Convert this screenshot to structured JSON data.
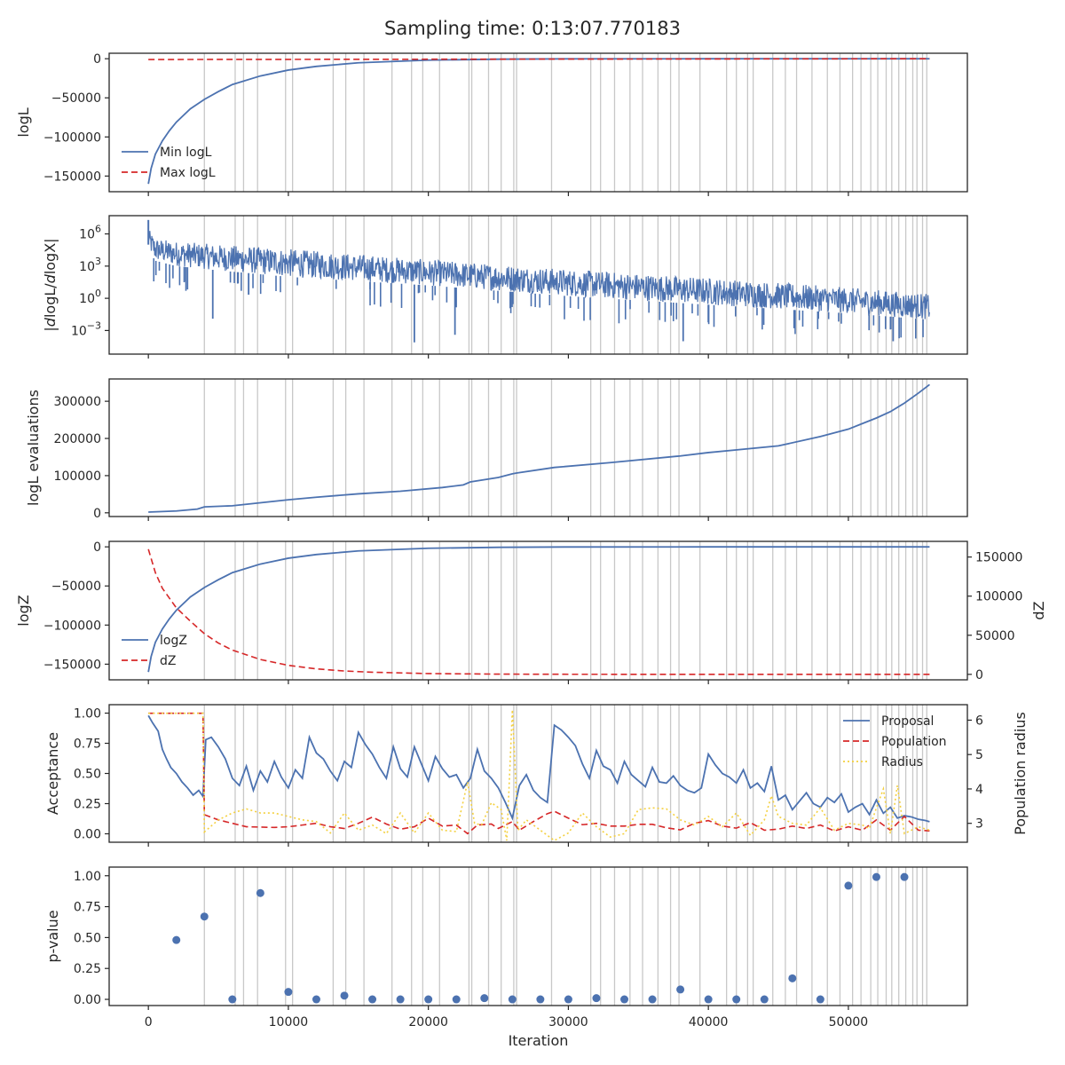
{
  "title": "Sampling time: 0:13:07.770183",
  "colors": {
    "blue": "#4c72b0",
    "red": "#d62728",
    "gold": "#f4d03f",
    "grid": "#c8c8c8",
    "axis": "#262626",
    "text": "#262626"
  },
  "chart_data": [
    {
      "type": "line",
      "id": "logL",
      "ylabel": "logL",
      "xlim": [
        -2800,
        58500
      ],
      "ylim": [
        -170000,
        7000
      ],
      "yticks": [
        0,
        -50000,
        -100000,
        -150000
      ],
      "ytick_labels": [
        "0",
        "−50000",
        "−100000",
        "−150000"
      ],
      "legend": "lower-left",
      "series": [
        {
          "name": "Min logL",
          "style": "solid",
          "color": "blue",
          "x": [
            0,
            200,
            500,
            1000,
            1500,
            2000,
            3000,
            4000,
            5000,
            6000,
            8000,
            10000,
            12000,
            15000,
            20000,
            25000,
            30000,
            40000,
            50000,
            55800
          ],
          "y": [
            -160000,
            -140000,
            -122000,
            -105000,
            -92000,
            -81000,
            -64000,
            -52000,
            -42000,
            -33000,
            -22000,
            -14500,
            -9800,
            -5200,
            -1800,
            -600,
            -150,
            -20,
            -3,
            0
          ]
        },
        {
          "name": "Max logL",
          "style": "dashed",
          "color": "red",
          "x": [
            0,
            55800
          ],
          "y": [
            -1000,
            0
          ]
        }
      ]
    },
    {
      "type": "line",
      "id": "dlogL",
      "ylabel": "|dlogL/dlogX|",
      "yscale": "log",
      "xlim": [
        -2800,
        58500
      ],
      "ylim": [
        -5.2,
        7.7
      ],
      "yticks": [
        6,
        3,
        0,
        -3
      ],
      "ytick_labels": [
        "10^6",
        "10^3",
        "10^0",
        "10^−3"
      ],
      "series": [
        {
          "name": "",
          "style": "noisy-band",
          "color": "blue",
          "x": [
            0,
            100,
            500,
            2000,
            5000,
            10000,
            20000,
            30000,
            40000,
            50000,
            55800
          ],
          "y_upper": [
            7.3,
            6.3,
            5.6,
            5.3,
            5.0,
            4.6,
            3.6,
            2.7,
            1.9,
            1.0,
            0.4
          ],
          "y_lower": [
            5.0,
            4.3,
            3.5,
            3.0,
            2.6,
            2.0,
            1.2,
            0.2,
            -0.6,
            -1.4,
            -2.0
          ],
          "y_min_spikes": [
            -1.9,
            -4.1,
            -3.4,
            -4.0,
            -4.0
          ]
        }
      ]
    },
    {
      "type": "line",
      "id": "evals",
      "ylabel": "logL evaluations",
      "xlim": [
        -2800,
        58500
      ],
      "ylim": [
        -10000,
        360000
      ],
      "yticks": [
        0,
        100000,
        200000,
        300000
      ],
      "ytick_labels": [
        "0",
        "100000",
        "200000",
        "300000"
      ],
      "series": [
        {
          "name": "",
          "style": "solid",
          "color": "blue",
          "x": [
            0,
            2000,
            3500,
            4000,
            6000,
            8000,
            10000,
            12000,
            15000,
            18000,
            21000,
            22500,
            23000,
            25000,
            26000,
            26300,
            29000,
            33000,
            38000,
            40000,
            45000,
            48000,
            50000,
            51000,
            52000,
            53000,
            54000,
            55000,
            55800
          ],
          "y": [
            2000,
            5000,
            10000,
            16000,
            19000,
            27000,
            35000,
            42000,
            51000,
            58000,
            68000,
            75000,
            83000,
            95000,
            105000,
            107000,
            122000,
            135000,
            153000,
            162000,
            180000,
            205000,
            225000,
            240000,
            255000,
            272000,
            295000,
            322000,
            345000
          ]
        }
      ]
    },
    {
      "type": "line",
      "id": "logZ",
      "ylabel": "logZ",
      "y2label": "dZ",
      "xlim": [
        -2800,
        58500
      ],
      "ylim": [
        -170000,
        7000
      ],
      "y2lim": [
        -7000,
        170000
      ],
      "yticks": [
        0,
        -50000,
        -100000,
        -150000
      ],
      "ytick_labels": [
        "0",
        "−50000",
        "−100000",
        "−150000"
      ],
      "y2ticks": [
        0,
        50000,
        100000,
        150000
      ],
      "y2tick_labels": [
        "0",
        "50000",
        "100000",
        "150000"
      ],
      "legend": "lower-left",
      "series": [
        {
          "name": "logZ",
          "style": "solid",
          "color": "blue",
          "axis": "left",
          "x": [
            0,
            200,
            500,
            1000,
            1500,
            2000,
            3000,
            4000,
            5000,
            6000,
            8000,
            10000,
            12000,
            15000,
            20000,
            25000,
            30000,
            40000,
            50000,
            55800
          ],
          "y": [
            -160000,
            -140000,
            -122000,
            -105000,
            -92000,
            -81000,
            -64000,
            -52000,
            -42000,
            -33000,
            -22000,
            -14500,
            -9800,
            -5200,
            -1800,
            -600,
            -150,
            -20,
            -3,
            0
          ]
        },
        {
          "name": "dZ",
          "style": "dashed",
          "color": "red",
          "axis": "right",
          "x": [
            0,
            500,
            1000,
            2000,
            3000,
            4000,
            5000,
            6000,
            8000,
            10000,
            12000,
            14000,
            16000,
            20000,
            25000,
            30000,
            40000,
            55800
          ],
          "y": [
            160000,
            130000,
            110000,
            85000,
            68000,
            52000,
            40000,
            31000,
            19000,
            11500,
            7000,
            4300,
            2700,
            1000,
            300,
            100,
            10,
            0
          ]
        }
      ]
    },
    {
      "type": "line",
      "id": "acceptance",
      "ylabel": "Acceptance",
      "y2label": "Population radius",
      "xlim": [
        -2800,
        58500
      ],
      "ylim": [
        -0.07,
        1.07
      ],
      "y2lim": [
        2.45,
        6.45
      ],
      "yticks": [
        0,
        0.25,
        0.5,
        0.75,
        1.0
      ],
      "ytick_labels": [
        "0.00",
        "0.25",
        "0.50",
        "0.75",
        "1.00"
      ],
      "y2ticks": [
        3,
        4,
        5,
        6
      ],
      "y2tick_labels": [
        "3",
        "4",
        "5",
        "6"
      ],
      "legend": "top-right",
      "series": [
        {
          "name": "Proposal",
          "style": "solid",
          "color": "blue",
          "axis": "left",
          "x": [
            0,
            300,
            700,
            1000,
            1300,
            1600,
            2000,
            2400,
            2800,
            3200,
            3600,
            3900,
            4100,
            4500,
            5000,
            5500,
            6000,
            6500,
            7000,
            7500,
            8000,
            8500,
            9000,
            9500,
            10000,
            10500,
            11000,
            11500,
            12000,
            12500,
            13000,
            13500,
            14000,
            14500,
            15000,
            15500,
            16000,
            16500,
            17000,
            17500,
            18000,
            18500,
            19000,
            19500,
            20000,
            20500,
            21000,
            21500,
            22000,
            22500,
            23000,
            23500,
            24000,
            24500,
            25000,
            25500,
            26000,
            26500,
            27000,
            27500,
            28000,
            28500,
            29000,
            29500,
            30000,
            30500,
            31000,
            31500,
            32000,
            32500,
            33000,
            33500,
            34000,
            34500,
            35000,
            35500,
            36000,
            36500,
            37000,
            37500,
            38000,
            38500,
            39000,
            39500,
            40000,
            40500,
            41000,
            41500,
            42000,
            42500,
            43000,
            43500,
            44000,
            44500,
            45000,
            45500,
            46000,
            46500,
            47000,
            47500,
            48000,
            48500,
            49000,
            49500,
            50000,
            50500,
            51000,
            51500,
            52000,
            52500,
            53000,
            53500,
            54000,
            54500,
            55000,
            55500,
            55800
          ],
          "y": [
            0.98,
            0.92,
            0.85,
            0.7,
            0.62,
            0.55,
            0.5,
            0.43,
            0.38,
            0.32,
            0.36,
            0.31,
            0.78,
            0.8,
            0.72,
            0.62,
            0.46,
            0.4,
            0.56,
            0.36,
            0.52,
            0.43,
            0.6,
            0.47,
            0.38,
            0.53,
            0.46,
            0.8,
            0.67,
            0.62,
            0.52,
            0.44,
            0.6,
            0.55,
            0.84,
            0.74,
            0.66,
            0.55,
            0.46,
            0.72,
            0.54,
            0.47,
            0.72,
            0.58,
            0.44,
            0.64,
            0.54,
            0.47,
            0.49,
            0.38,
            0.46,
            0.7,
            0.52,
            0.46,
            0.38,
            0.26,
            0.13,
            0.4,
            0.49,
            0.36,
            0.3,
            0.26,
            0.9,
            0.86,
            0.8,
            0.73,
            0.58,
            0.46,
            0.69,
            0.56,
            0.53,
            0.42,
            0.6,
            0.49,
            0.44,
            0.39,
            0.55,
            0.43,
            0.42,
            0.48,
            0.4,
            0.36,
            0.34,
            0.38,
            0.66,
            0.57,
            0.5,
            0.47,
            0.42,
            0.53,
            0.38,
            0.42,
            0.35,
            0.56,
            0.28,
            0.32,
            0.2,
            0.27,
            0.34,
            0.25,
            0.22,
            0.3,
            0.26,
            0.33,
            0.18,
            0.22,
            0.25,
            0.16,
            0.28,
            0.17,
            0.22,
            0.13,
            0.15,
            0.14,
            0.12,
            0.11,
            0.1
          ]
        },
        {
          "name": "Population",
          "style": "dashed",
          "color": "red",
          "axis": "right",
          "x": [
            0,
            3900,
            4000,
            5000,
            7000,
            9000,
            10000,
            11000,
            12000,
            13000,
            14000,
            15000,
            16000,
            17000,
            18000,
            19000,
            20000,
            21000,
            22000,
            22800,
            23500,
            24500,
            25000,
            26000,
            26500,
            27500,
            28500,
            29000,
            30000,
            31000,
            32000,
            33000,
            34000,
            35000,
            36000,
            37000,
            38000,
            39000,
            40000,
            41000,
            42000,
            43000,
            44000,
            45000,
            46000,
            47000,
            48000,
            49000,
            50000,
            51000,
            52000,
            53000,
            54000,
            55000,
            55800
          ],
          "y": [
            6.2,
            6.2,
            3.25,
            3.1,
            2.9,
            2.88,
            2.9,
            2.95,
            3.0,
            2.9,
            2.85,
            3.0,
            3.18,
            2.98,
            2.83,
            2.9,
            3.15,
            2.92,
            2.95,
            2.7,
            2.95,
            2.98,
            2.85,
            3.05,
            2.8,
            3.05,
            3.28,
            3.35,
            3.15,
            2.96,
            3.0,
            2.92,
            2.92,
            2.97,
            2.97,
            2.87,
            2.81,
            3.0,
            3.08,
            2.92,
            2.86,
            3.02,
            2.8,
            2.83,
            2.92,
            2.85,
            2.95,
            2.78,
            2.9,
            2.8,
            3.1,
            2.8,
            3.2,
            2.8,
            2.78
          ]
        },
        {
          "name": "Radius",
          "style": "dotted",
          "color": "gold",
          "axis": "right",
          "x": [
            0,
            3900,
            4000,
            5000,
            6000,
            7000,
            8000,
            9000,
            10000,
            11000,
            12000,
            13000,
            14000,
            15000,
            16000,
            17000,
            18000,
            19000,
            20000,
            21000,
            22000,
            22800,
            23300,
            23800,
            24500,
            25200,
            25600,
            26000,
            26400,
            27000,
            28000,
            29000,
            30000,
            31000,
            32000,
            33000,
            34000,
            35000,
            36000,
            37000,
            38000,
            39000,
            40000,
            41000,
            42000,
            43000,
            44000,
            44500,
            45000,
            46000,
            47000,
            48000,
            49000,
            50000,
            51000,
            51500,
            52000,
            52500,
            53000,
            53500,
            54000,
            55000,
            55800
          ],
          "y": [
            6.2,
            6.2,
            2.75,
            3.1,
            3.3,
            3.42,
            3.3,
            3.3,
            3.2,
            3.1,
            3.05,
            2.72,
            3.3,
            2.8,
            2.95,
            2.7,
            3.3,
            2.72,
            3.3,
            2.8,
            2.76,
            4.2,
            3.0,
            2.95,
            3.6,
            3.4,
            2.5,
            6.3,
            2.8,
            3.1,
            2.8,
            2.5,
            2.72,
            3.3,
            2.9,
            2.6,
            2.7,
            3.4,
            3.45,
            3.42,
            3.1,
            2.95,
            3.2,
            2.9,
            3.3,
            2.65,
            3.1,
            3.8,
            3.2,
            3.0,
            2.95,
            3.45,
            2.8,
            3.0,
            2.95,
            2.85,
            3.45,
            4.0,
            2.7,
            4.1,
            2.7,
            2.9,
            2.8
          ]
        }
      ]
    },
    {
      "type": "scatter",
      "id": "pvalue",
      "ylabel": "p-value",
      "xlim": [
        -2800,
        58500
      ],
      "ylim": [
        -0.05,
        1.07
      ],
      "yticks": [
        0,
        0.25,
        0.5,
        0.75,
        1.0
      ],
      "ytick_labels": [
        "0.00",
        "0.25",
        "0.50",
        "0.75",
        "1.00"
      ],
      "xlabel": "Iteration",
      "xticks": [
        0,
        10000,
        20000,
        30000,
        40000,
        50000
      ],
      "xtick_labels": [
        "0",
        "10000",
        "20000",
        "30000",
        "40000",
        "50000"
      ],
      "series": [
        {
          "name": "",
          "color": "blue",
          "x": [
            2000,
            4000,
            6000,
            8000,
            10000,
            12000,
            14000,
            16000,
            18000,
            20000,
            22000,
            24000,
            26000,
            28000,
            30000,
            32000,
            34000,
            36000,
            38000,
            40000,
            42000,
            44000,
            46000,
            48000,
            50000,
            52000,
            54000
          ],
          "y": [
            0.48,
            0.67,
            0.0,
            0.86,
            0.06,
            0.0,
            0.03,
            0.0,
            0.0,
            0.0,
            0.0,
            0.01,
            0.0,
            0.0,
            0.0,
            0.01,
            0.0,
            0.0,
            0.08,
            0.0,
            0.0,
            0.0,
            0.17,
            0.0,
            0.92,
            0.99,
            0.99
          ]
        }
      ]
    }
  ],
  "vlines": [
    4000,
    6200,
    6800,
    7800,
    9800,
    10300,
    13200,
    14100,
    15400,
    17400,
    18800,
    19600,
    20800,
    22900,
    23100,
    24300,
    25200,
    26100,
    26300,
    28800,
    31600,
    32300,
    33300,
    34400,
    35300,
    36400,
    37300,
    37900,
    39400,
    41300,
    42000,
    42800,
    43200,
    44600,
    45500,
    46300,
    47400,
    48500,
    49400,
    50300,
    50900,
    51600,
    52100,
    52700,
    53100,
    53600,
    54100,
    54600,
    54900,
    55300,
    55600
  ]
}
